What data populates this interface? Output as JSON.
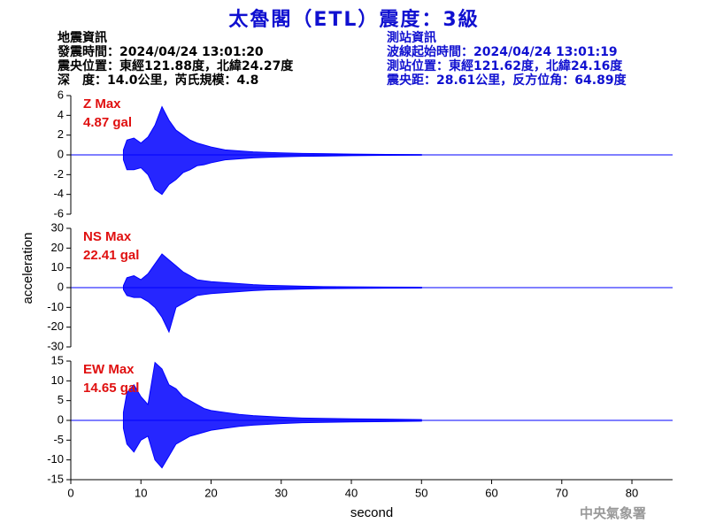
{
  "header": {
    "title": "太魯閣（ETL）震度：3級",
    "left": [
      "地震資訊",
      "發震時間：2024/04/24 13:01:20",
      "震央位置：東經121.88度，北緯24.27度",
      "深　度：14.0公里，芮氏規模：4.8"
    ],
    "right": [
      "測站資訊",
      "波線起始時間：2024/04/24 13:01:19",
      "測站位置：東經121.62度，北緯24.16度",
      "震央距：28.61公里，反方位角：64.89度"
    ],
    "footer": "中央氣象署"
  },
  "chart_data": [
    {
      "type": "area",
      "annotation": [
        "Z Max",
        "4.87 gal"
      ],
      "xlim": [
        0,
        85.8
      ],
      "ylim": [
        -6,
        6
      ],
      "yticks": [
        -6,
        -4,
        -2,
        0,
        2,
        4,
        6
      ],
      "x": [
        7.5,
        8,
        9,
        10,
        11,
        12,
        13,
        14,
        15,
        16,
        17,
        18,
        19,
        20,
        22,
        24,
        26,
        28,
        30,
        33,
        36,
        40,
        45,
        50
      ],
      "series": [
        {
          "color": "#0000ff",
          "values": [
            0.5,
            1.5,
            1.7,
            1.2,
            1.8,
            3.0,
            4.87,
            3.5,
            2.5,
            2.0,
            1.5,
            1.2,
            1.0,
            0.8,
            0.5,
            0.4,
            0.3,
            0.25,
            0.2,
            0.15,
            0.12,
            0.08,
            0.05,
            0.03
          ]
        },
        {
          "color": "#0000ff",
          "values": [
            -0.5,
            -1.5,
            -1.5,
            -1.3,
            -2.0,
            -3.5,
            -4.0,
            -3.0,
            -2.5,
            -1.8,
            -1.5,
            -1.1,
            -1.0,
            -0.8,
            -0.5,
            -0.4,
            -0.3,
            -0.25,
            -0.2,
            -0.15,
            -0.12,
            -0.08,
            -0.05,
            -0.03
          ]
        }
      ]
    },
    {
      "type": "area",
      "annotation": [
        "NS Max",
        "22.41 gal"
      ],
      "ylabel": "acceleration",
      "xlim": [
        0,
        85.8
      ],
      "ylim": [
        -30,
        30
      ],
      "yticks": [
        -30,
        -20,
        -10,
        0,
        10,
        20,
        30
      ],
      "x": [
        7.5,
        8,
        9,
        10,
        11,
        12,
        13,
        14,
        15,
        16,
        17,
        18,
        19,
        20,
        22,
        24,
        26,
        28,
        30,
        33,
        36,
        40,
        45,
        50
      ],
      "series": [
        {
          "color": "#0000ff",
          "values": [
            1,
            5,
            6,
            4,
            7,
            12,
            17,
            14,
            11,
            8,
            6,
            4,
            3.5,
            3,
            2.5,
            2,
            1.5,
            1.2,
            1,
            0.7,
            0.5,
            0.4,
            0.3,
            0.2
          ]
        },
        {
          "color": "#0000ff",
          "values": [
            -1,
            -4,
            -5,
            -5,
            -7,
            -10,
            -15,
            -22.41,
            -10,
            -8,
            -6,
            -4,
            -3.5,
            -3,
            -2.5,
            -2,
            -1.5,
            -1.2,
            -1,
            -0.7,
            -0.5,
            -0.4,
            -0.3,
            -0.2
          ]
        }
      ]
    },
    {
      "type": "area",
      "annotation": [
        "EW Max",
        "14.65 gal"
      ],
      "xlabel": "second",
      "xlim": [
        0,
        85.8
      ],
      "ylim": [
        -15,
        15
      ],
      "yticks": [
        -15,
        -10,
        -5,
        0,
        5,
        10,
        15
      ],
      "xticks": [
        0,
        10,
        20,
        30,
        40,
        50,
        60,
        70,
        80
      ],
      "x": [
        7.5,
        8,
        9,
        10,
        11,
        12,
        13,
        14,
        15,
        16,
        17,
        18,
        19,
        20,
        22,
        24,
        26,
        28,
        30,
        33,
        36,
        40,
        45,
        50
      ],
      "series": [
        {
          "color": "#0000ff",
          "values": [
            2,
            7,
            9,
            6,
            4,
            14.65,
            13,
            9,
            8,
            6,
            5,
            4,
            3,
            2.5,
            2,
            1.5,
            1.2,
            1,
            0.8,
            0.6,
            0.5,
            0.4,
            0.3,
            0.2
          ]
        },
        {
          "color": "#0000ff",
          "values": [
            -2,
            -6,
            -8,
            -5,
            -4,
            -10,
            -12,
            -9,
            -6,
            -5,
            -4,
            -3.5,
            -3,
            -2.5,
            -2,
            -1.5,
            -1.2,
            -1,
            -0.8,
            -0.6,
            -0.5,
            -0.4,
            -0.3,
            -0.2
          ]
        }
      ]
    }
  ]
}
